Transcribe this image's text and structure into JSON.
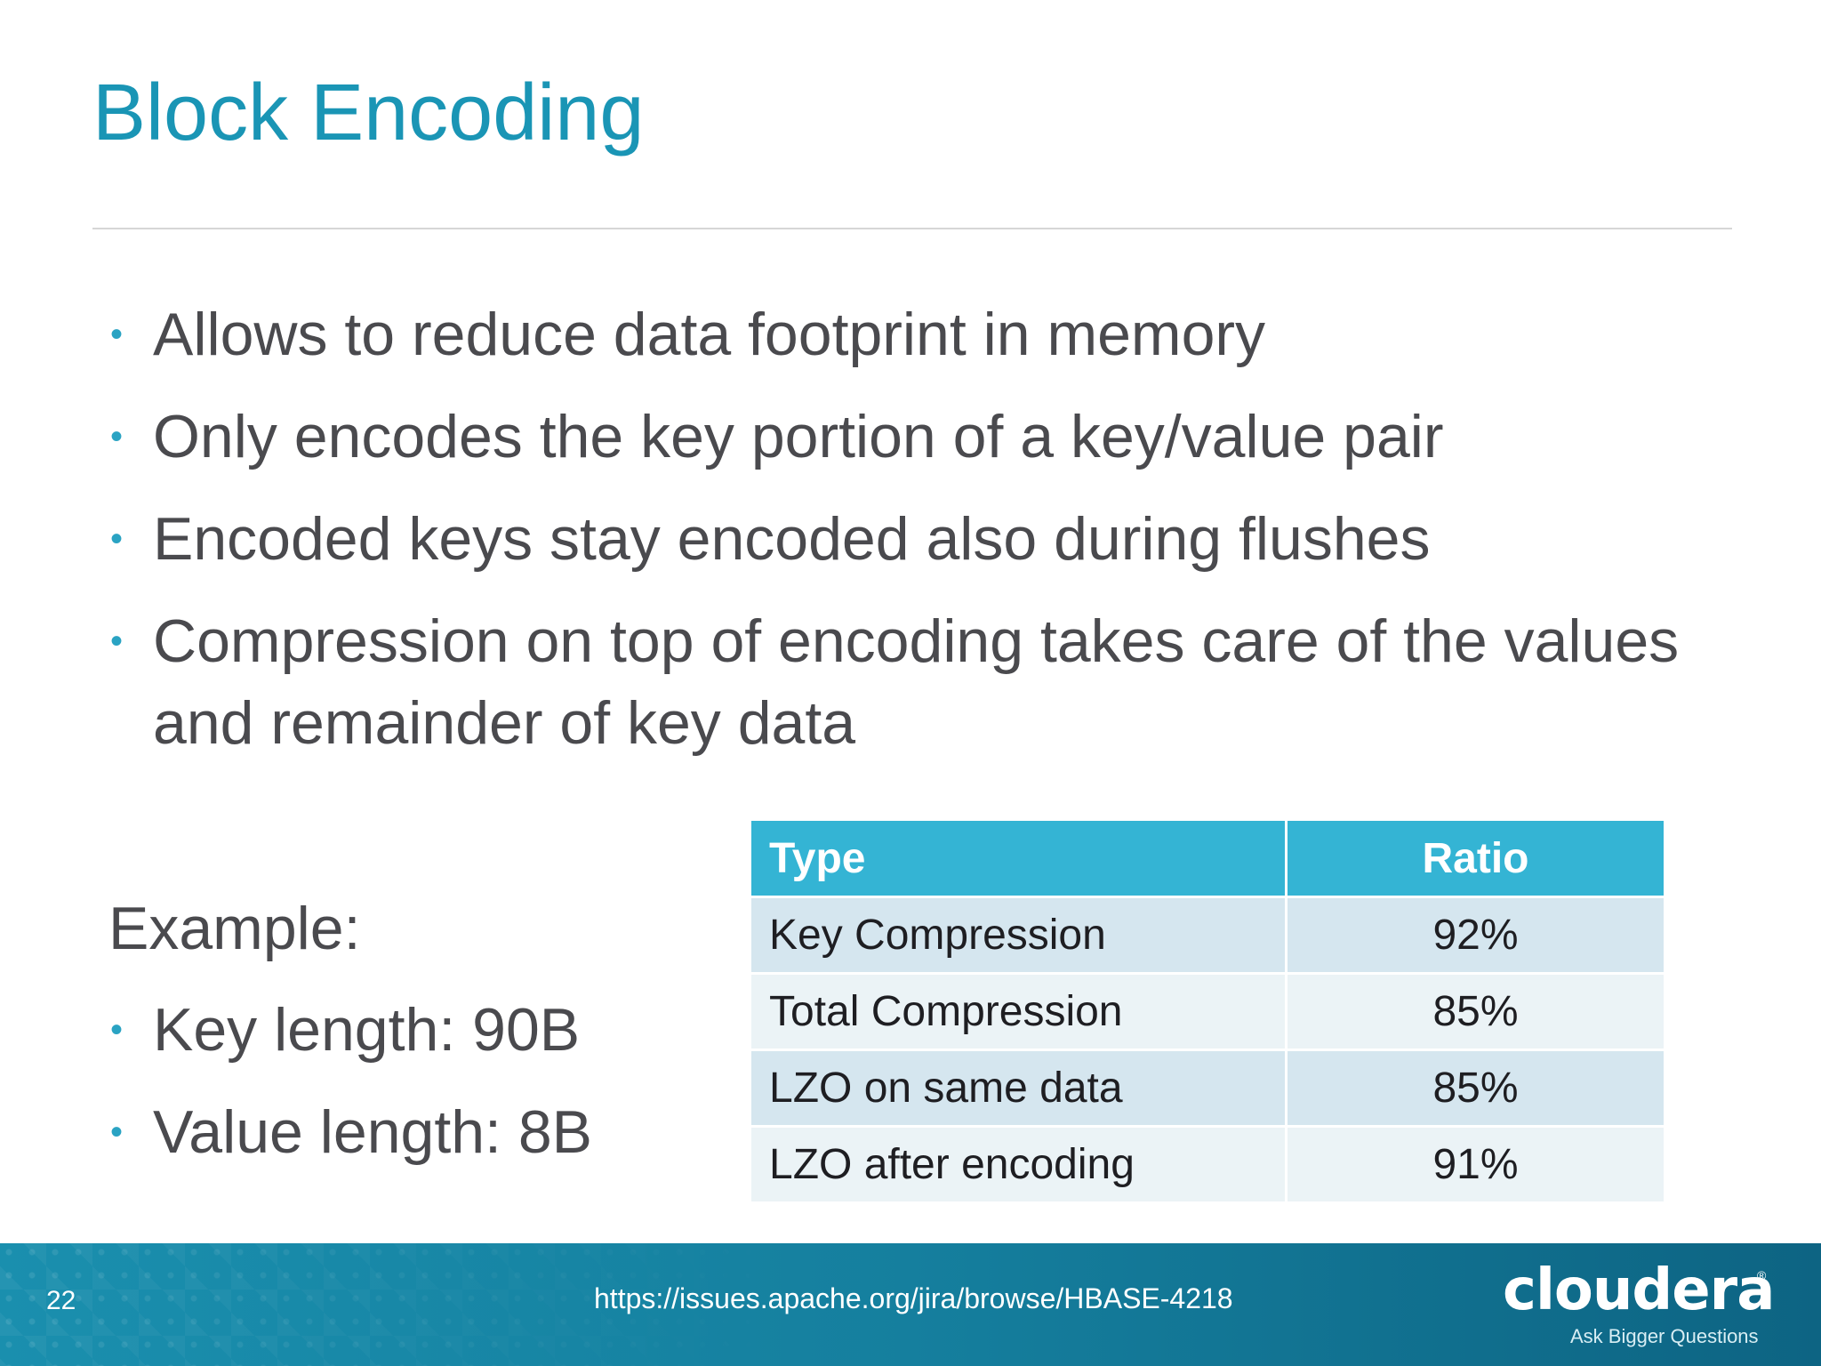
{
  "slide": {
    "title": "Block Encoding",
    "bullets": [
      "Allows to reduce data footprint in memory",
      "Only encodes the key portion of a key/value pair",
      "Encoded keys stay encoded also during flushes",
      "Compression on top of encoding takes care of the values and remainder of key data"
    ],
    "bullet_glyph": "•",
    "example": {
      "label": "Example:",
      "items": [
        "Key length: 90B",
        "Value length: 8B"
      ]
    },
    "table": {
      "headers": [
        "Type",
        "Ratio"
      ],
      "rows": [
        [
          "Key Compression",
          "92%"
        ],
        [
          "Total Compression",
          "85%"
        ],
        [
          "LZO on same data",
          "85%"
        ],
        [
          "LZO after encoding",
          "91%"
        ]
      ]
    }
  },
  "footer": {
    "page_number": "22",
    "url": "https://issues.apache.org/jira/browse/HBASE-4218",
    "logo": {
      "wordmark": "cloudera",
      "registered": "®",
      "tagline": "Ask Bigger Questions"
    }
  },
  "colors": {
    "title": "#1a95b5",
    "bullet_dot": "#2aa3c3",
    "table_header": "#34b4d4",
    "table_row_odd": "#d5e6ef",
    "table_row_even": "#ebf3f6",
    "footer_band": "#157f9e"
  }
}
